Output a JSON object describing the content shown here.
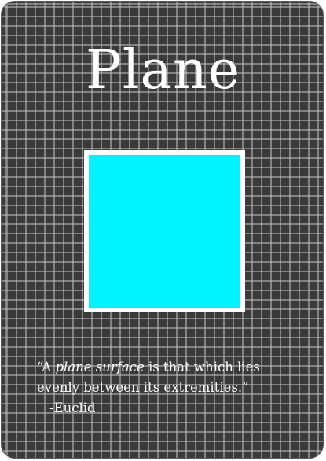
{
  "card": {
    "title": "Plane",
    "square_color": "#00f4ff",
    "background_color": "#3a3a3a",
    "quote": {
      "open": "“A ",
      "emphasis": "plane surface",
      "line1_rest": " is that which lies",
      "line2": "evenly between its extremities.”",
      "attribution": "-Euclid"
    }
  }
}
